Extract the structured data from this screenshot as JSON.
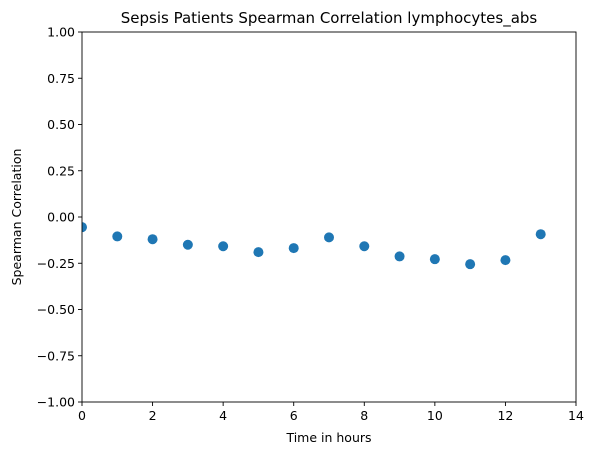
{
  "chart_data": {
    "type": "scatter",
    "title": "Sepsis Patients Spearman Correlation lymphocytes_abs",
    "xlabel": "Time in hours",
    "ylabel": "Spearman Correlation",
    "xlim": [
      0,
      14
    ],
    "ylim": [
      -1.0,
      1.0
    ],
    "x_ticks": [
      "0",
      "2",
      "4",
      "6",
      "8",
      "10",
      "12",
      "14"
    ],
    "y_ticks": [
      "−1.00",
      "−0.75",
      "−0.50",
      "−0.25",
      "0.00",
      "0.25",
      "0.50",
      "0.75",
      "1.00"
    ],
    "grid": false,
    "marker_color": "#1f77b4",
    "series": [
      {
        "x": [
          0,
          1,
          2,
          3,
          4,
          5,
          6,
          7,
          8,
          9,
          10,
          11,
          12,
          13
        ],
        "y": [
          -0.055,
          -0.105,
          -0.12,
          -0.15,
          -0.158,
          -0.19,
          -0.168,
          -0.11,
          -0.158,
          -0.213,
          -0.228,
          -0.255,
          -0.233,
          -0.093
        ]
      }
    ]
  }
}
